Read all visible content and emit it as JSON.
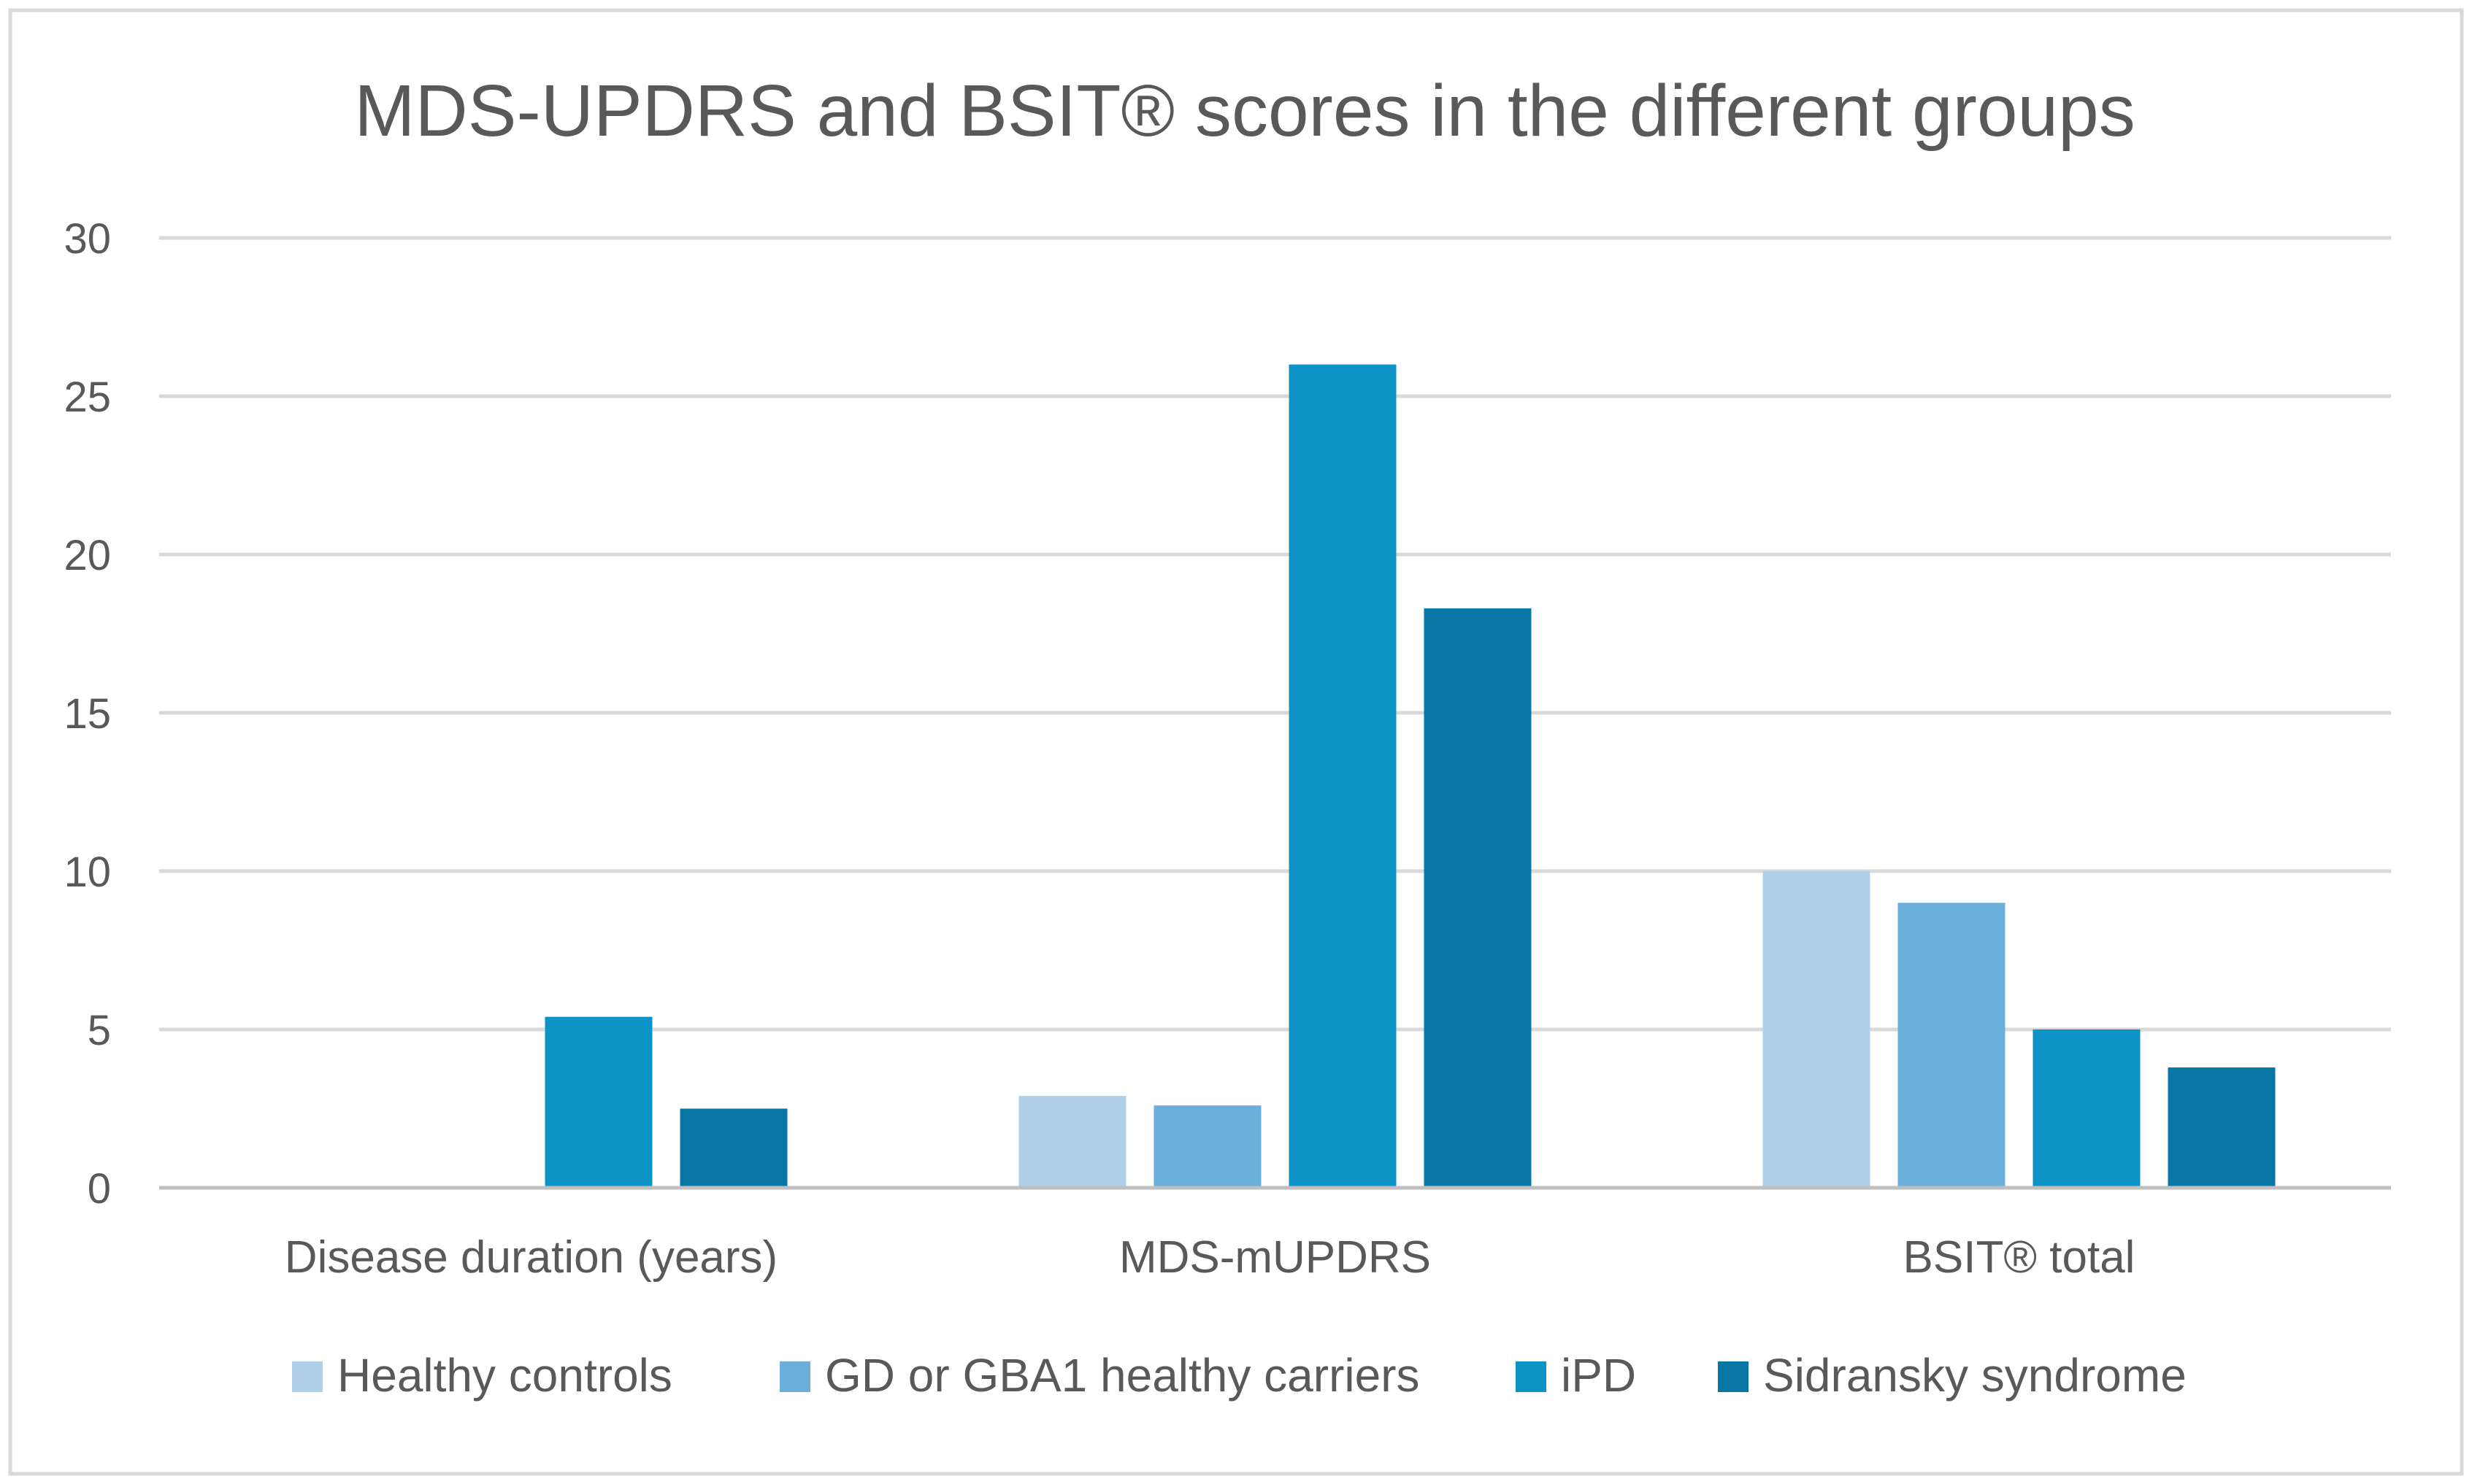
{
  "chart_data": {
    "type": "bar",
    "title": "MDS-UPDRS and BSIT® scores in the different groups",
    "xlabel": "",
    "ylabel": "",
    "ylim": [
      0,
      30
    ],
    "yticks": [
      0,
      5,
      10,
      15,
      20,
      25,
      30
    ],
    "grid": true,
    "legend_position": "bottom",
    "categories": [
      "Disease duration (years)",
      "MDS-mUPDRS",
      "BSIT® total"
    ],
    "series": [
      {
        "name": "Healthy controls",
        "color": "#B0CFE8",
        "values": [
          0,
          2.9,
          10.0
        ]
      },
      {
        "name": "GD or GBA1 healthy carriers",
        "color": "#6AAFDA",
        "values": [
          0,
          2.6,
          9.0
        ]
      },
      {
        "name": "iPD",
        "color": "#0D93C6",
        "values": [
          5.4,
          26.0,
          5.0
        ]
      },
      {
        "name": "Sidransky syndrome",
        "color": "#0877A6",
        "values": [
          2.5,
          18.3,
          3.8
        ]
      }
    ]
  },
  "colors": {
    "background": "#ffffff",
    "frame_border": "#D9D9D9",
    "gridline": "#D9D9D9",
    "axis_line": "#BFBFBF",
    "text": "#595959"
  }
}
